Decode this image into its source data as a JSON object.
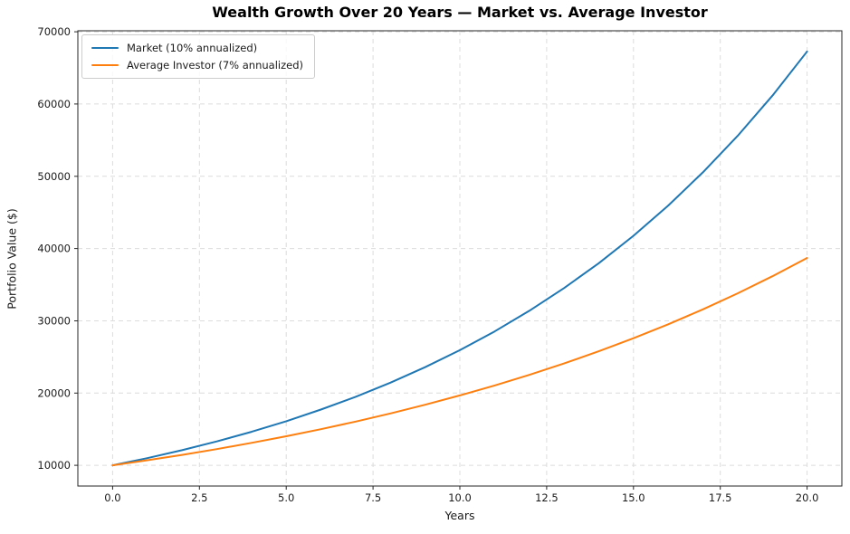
{
  "chart_data": {
    "type": "line",
    "title": "Wealth Growth Over 20 Years — Market vs. Average Investor",
    "xlabel": "Years",
    "ylabel": "Portfolio Value ($)",
    "x": [
      0,
      1,
      2,
      3,
      4,
      5,
      6,
      7,
      8,
      9,
      10,
      11,
      12,
      13,
      14,
      15,
      16,
      17,
      18,
      19,
      20
    ],
    "series": [
      {
        "name": "Market (10% annualized)",
        "color": "#1f77b4",
        "values": [
          10000,
          11000,
          12100,
          13310,
          14641,
          16105,
          17716,
          19487,
          21436,
          23579,
          25937,
          28531,
          31384,
          34523,
          37975,
          41772,
          45950,
          50545,
          55599,
          61159,
          67275
        ]
      },
      {
        "name": "Average Investor (7% annualized)",
        "color": "#ff7f0e",
        "values": [
          10000,
          10700,
          11449,
          12250,
          13108,
          14026,
          15007,
          16058,
          17182,
          18385,
          19672,
          21049,
          22522,
          24098,
          25785,
          27590,
          29522,
          31588,
          33799,
          36165,
          38697
        ]
      }
    ],
    "xlim": [
      -1,
      21
    ],
    "ylim": [
      7136,
      70139
    ],
    "xticks": {
      "values": [
        0,
        2.5,
        5,
        7.5,
        10,
        12.5,
        15,
        17.5,
        20
      ],
      "labels": [
        "0.0",
        "2.5",
        "5.0",
        "7.5",
        "10.0",
        "12.5",
        "15.0",
        "17.5",
        "20.0"
      ]
    },
    "yticks": {
      "values": [
        10000,
        20000,
        30000,
        40000,
        50000,
        60000,
        70000
      ],
      "labels": [
        "10000",
        "20000",
        "30000",
        "40000",
        "50000",
        "60000",
        "70000"
      ]
    },
    "grid": {
      "visible": true,
      "style": "dashed",
      "color": "#dcdcdc"
    },
    "legend": {
      "position": "upper-left"
    },
    "axis_color": "#262626",
    "tick_label_color": "#1a1a1a",
    "background": "#ffffff"
  }
}
